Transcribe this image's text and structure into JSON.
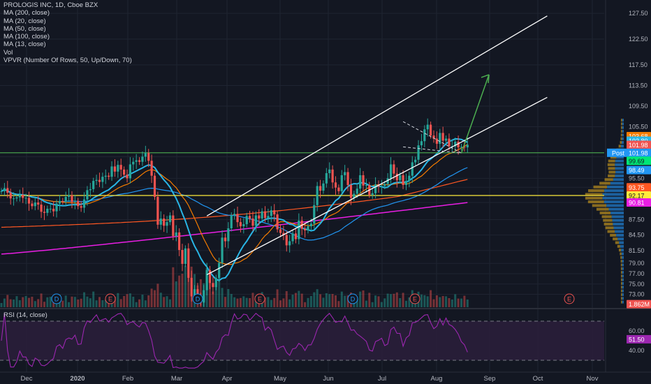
{
  "legend": {
    "title": "PROLOGIS INC, 1D, Cboe BZX",
    "indicators": [
      "MA (200, close)",
      "MA (20, close)",
      "MA (50, close)",
      "MA (100, close)",
      "MA (13, close)",
      "Vol",
      "VPVR (Number Of Rows, 50, Up/Down, 70)"
    ],
    "rsi": "RSI (14, close)"
  },
  "colors": {
    "background": "#131722",
    "grid": "#1f2431",
    "up": "#26a69a",
    "down": "#ef5350",
    "ma20": "#f57c00",
    "ma50": "#2196f3",
    "ma100": "#ff5722",
    "ma200": "#e91ee3",
    "ma13": "#29b6e6",
    "support": "#4caf50",
    "resistance": "#ffeb3b",
    "arrow": "#4caf50",
    "rsi": "#9c27b0"
  },
  "chart_data": {
    "type": "candlestick",
    "symbol": "PROLOGIS INC",
    "interval": "1D",
    "exchange": "Cboe BZX",
    "ylim": [
      70.5,
      129
    ],
    "x_ticks": [
      "Dec",
      "2020",
      "Feb",
      "Mar",
      "Apr",
      "May",
      "Jun",
      "Jul",
      "Aug",
      "Sep",
      "Oct",
      "Nov"
    ],
    "y_ticks": [
      "127.50",
      "122.50",
      "117.50",
      "113.50",
      "109.50",
      "105.50",
      "99.69",
      "95.50",
      "93.75",
      "92.17",
      "90.81",
      "87.50",
      "84.50",
      "81.50",
      "79.00",
      "77.00",
      "75.00",
      "73.00"
    ],
    "price_labels": [
      {
        "value": "103.68",
        "price": 103.68,
        "color": "#f57c00"
      },
      {
        "value": "102.80",
        "price": 102.8,
        "color": "#29b6e6"
      },
      {
        "value": "101.98",
        "price": 101.98,
        "color": "#ef5350"
      },
      {
        "value": "Post",
        "price": 100.45,
        "color": "#2196f3",
        "tag": "101.98"
      },
      {
        "value": "99.69",
        "price": 98.9,
        "color": "#00e676"
      },
      {
        "value": "98.49",
        "price": 97.1,
        "color": "#2196f3"
      },
      {
        "value": "93.75",
        "price": 93.75,
        "color": "#ff5722"
      },
      {
        "value": "92.17",
        "price": 92.17,
        "color": "#ffeb3b"
      },
      {
        "value": "90.81",
        "price": 90.81,
        "color": "#e91ee3"
      },
      {
        "value": "1.862M",
        "price": 71.1,
        "color": "#ef5350"
      }
    ],
    "closes": [
      93.0,
      93.6,
      92.7,
      91.6,
      91.6,
      91.8,
      92.3,
      91.7,
      91.7,
      90.6,
      90.1,
      90.8,
      90.4,
      89.0,
      88.8,
      89.6,
      89.6,
      89.1,
      90.6,
      91.1,
      91.0,
      91.9,
      92.2,
      90.9,
      91.1,
      90.1,
      89.8,
      91.4,
      93.2,
      93.4,
      95.0,
      95.2,
      94.8,
      95.8,
      96.0,
      95.8,
      97.8,
      96.8,
      98.1,
      97.2,
      96.2,
      95.5,
      98.2,
      98.7,
      99.0,
      98.7,
      99.7,
      100.4,
      98.9,
      96.0,
      91.9,
      86.5,
      87.7,
      86.3,
      87.0,
      88.3,
      84.3,
      85.0,
      81.6,
      78.9,
      81.9,
      76.2,
      72.6,
      74.0,
      72.7,
      71.4,
      73.8,
      77.7,
      75.2,
      74.4,
      76.2,
      79.1,
      84.0,
      83.3,
      85.8,
      88.3,
      88.6,
      87.0,
      86.2,
      86.6,
      88.2,
      87.7,
      86.3,
      88.3,
      87.7,
      89.1,
      87.8,
      88.2,
      89.3,
      88.5,
      85.6,
      84.9,
      84.5,
      82.5,
      83.3,
      84.8,
      83.7,
      87.3,
      85.7,
      85.4,
      86.2,
      86.7,
      90.3,
      94.0,
      93.1,
      94.5,
      96.5,
      97.2,
      94.7,
      93.7,
      93.0,
      96.1,
      96.7,
      94.2,
      91.7,
      92.5,
      93.5,
      96.1,
      94.1,
      94.2,
      92.3,
      92.6,
      94.3,
      93.9,
      94.0,
      94.4,
      95.5,
      98.2,
      96.4,
      95.1,
      96.1,
      94.2,
      95.0,
      96.0,
      98.6,
      99.1,
      101.9,
      102.7,
      105.0,
      105.9,
      103.8,
      103.2,
      102.2,
      104.3,
      102.8,
      103.2,
      101.7,
      101.7,
      102.6,
      101.5,
      101.6,
      101.5,
      102.0
    ],
    "series": [
      {
        "name": "MA (200, close)",
        "color": "#e91ee3",
        "from": 0,
        "to": 158,
        "y0": 80.8,
        "y1": 90.8
      },
      {
        "name": "MA (100, close)",
        "color": "#ff5722",
        "from": 0,
        "to": 158,
        "y0": 86.0,
        "y1": 93.75
      },
      {
        "name": "MA (50, close)",
        "color": "#2196f3"
      },
      {
        "name": "MA (20, close)",
        "color": "#f57c00"
      },
      {
        "name": "MA (13, close)",
        "color": "#29b6e6"
      }
    ],
    "horizontal_lines": [
      {
        "price": 100.45,
        "color": "#4caf50"
      },
      {
        "price": 92.17,
        "color": "#ffeb3b"
      }
    ],
    "channel": [
      {
        "x0": 67,
        "y0": 88.2,
        "x1": 178,
        "y1": 127.0
      },
      {
        "x0": 67,
        "y0": 76.8,
        "x1": 178,
        "y1": 111.2
      }
    ],
    "wedge": [
      {
        "x0": 131,
        "y0": 106.5,
        "x1": 150,
        "y1": 100.4
      },
      {
        "x0": 131,
        "y0": 101.6,
        "x1": 150,
        "y1": 100.4
      }
    ],
    "arrow": {
      "x0": 150,
      "y0": 100.4,
      "x1": 159,
      "y1": 115.6
    },
    "events": [
      "D",
      "E",
      "D",
      "E",
      "D",
      "E",
      "D",
      "E",
      "E"
    ],
    "rsi": {
      "levels": [
        70,
        30
      ],
      "ticks": [
        "60.00",
        "40.00"
      ],
      "last": "51.50",
      "ylim": [
        20,
        80
      ]
    }
  }
}
